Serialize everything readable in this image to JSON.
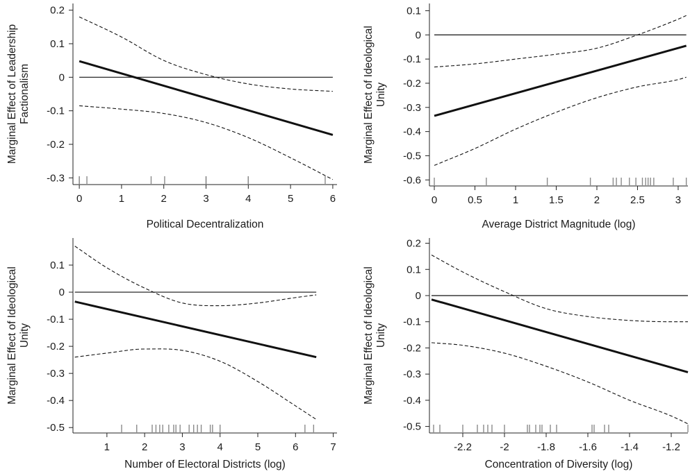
{
  "chart_data": [
    {
      "type": "line",
      "xlabel": "Political Decentralization",
      "ylabel": [
        "Marginal Effect of Leadership",
        "Factionalism"
      ],
      "xlim": [
        -0.15,
        6.1
      ],
      "ylim": [
        -0.32,
        0.22
      ],
      "xticks": [
        0,
        1,
        2,
        3,
        4,
        5,
        6
      ],
      "xtick_labels": [
        "0",
        "1",
        "2",
        "3",
        "4",
        "5",
        "6"
      ],
      "yticks": [
        0.2,
        0.1,
        0,
        -0.1,
        -0.2,
        -0.3
      ],
      "ytick_labels": [
        "0.2",
        "0.1",
        "0",
        "-0.1",
        "-0.2",
        "-0.3"
      ],
      "reference_line": 0,
      "estimate": {
        "x": [
          0,
          6
        ],
        "y": [
          0.048,
          -0.172
        ]
      },
      "ci_upper": {
        "x": [
          0,
          1,
          2,
          3,
          4,
          5,
          6
        ],
        "y": [
          0.18,
          0.12,
          0.05,
          0.008,
          -0.02,
          -0.035,
          -0.042
        ]
      },
      "ci_lower": {
        "x": [
          0,
          1,
          2,
          3,
          4,
          5,
          6
        ],
        "y": [
          -0.085,
          -0.095,
          -0.108,
          -0.135,
          -0.18,
          -0.24,
          -0.305
        ]
      },
      "rug": [
        0,
        0,
        0.18,
        1.7,
        2.02,
        3,
        3,
        4,
        4,
        4,
        5.82
      ]
    },
    {
      "type": "line",
      "xlabel": "Average District Magnitude (log)",
      "ylabel": [
        "Marginal Effect of Ideological",
        "Unity"
      ],
      "xlim": [
        -0.06,
        3.12
      ],
      "ylim": [
        -0.625,
        0.13
      ],
      "xticks": [
        0,
        0.5,
        1,
        1.5,
        2,
        2.5,
        3
      ],
      "xtick_labels": [
        "0",
        "0.5",
        "1",
        "1.5",
        "2",
        "2.5",
        "3"
      ],
      "yticks": [
        0.1,
        0,
        -0.1,
        -0.2,
        -0.3,
        -0.4,
        -0.5,
        -0.6
      ],
      "ytick_labels": [
        "0.1",
        "0",
        "-0.1",
        "-0.2",
        "-0.3",
        "-0.4",
        "-0.5",
        "-0.6"
      ],
      "reference_line": 0,
      "estimate": {
        "x": [
          0,
          3.1
        ],
        "y": [
          -0.335,
          -0.045
        ]
      },
      "ci_upper": {
        "x": [
          0,
          0.5,
          1,
          1.5,
          2,
          2.5,
          3,
          3.1
        ],
        "y": [
          -0.133,
          -0.12,
          -0.1,
          -0.08,
          -0.055,
          0,
          0.065,
          0.08
        ]
      },
      "ci_lower": {
        "x": [
          0,
          0.5,
          1,
          1.5,
          2,
          2.5,
          3,
          3.1
        ],
        "y": [
          -0.54,
          -0.47,
          -0.39,
          -0.32,
          -0.26,
          -0.215,
          -0.185,
          -0.175
        ]
      },
      "rug": [
        0,
        0.64,
        1.39,
        1.92,
        2.2,
        2.24,
        2.3,
        2.4,
        2.48,
        2.56,
        2.6,
        2.63,
        2.66,
        2.7,
        2.94,
        3.1
      ]
    },
    {
      "type": "line",
      "xlabel": "Number of Electoral Districts (log)",
      "ylabel": [
        "Marginal Effect of Ideological",
        "Unity"
      ],
      "xlim": [
        0.1,
        7.1
      ],
      "ylim": [
        -0.52,
        0.2
      ],
      "xticks": [
        1,
        2,
        3,
        4,
        5,
        6,
        7
      ],
      "xtick_labels": [
        "1",
        "2",
        "3",
        "4",
        "5",
        "6",
        "7"
      ],
      "yticks": [
        0.1,
        0,
        -0.1,
        -0.2,
        -0.3,
        -0.4,
        -0.5
      ],
      "ytick_labels": [
        "0.1",
        "0",
        "-0.1",
        "-0.2",
        "-0.3",
        "-0.4",
        "-0.5"
      ],
      "reference_line": 0,
      "estimate": {
        "x": [
          0.15,
          6.55
        ],
        "y": [
          -0.035,
          -0.24
        ]
      },
      "ci_upper": {
        "x": [
          0.15,
          1,
          2,
          3,
          4,
          5,
          6,
          6.55
        ],
        "y": [
          0.17,
          0.09,
          0.015,
          -0.04,
          -0.05,
          -0.04,
          -0.02,
          -0.01
        ]
      },
      "ci_lower": {
        "x": [
          0.15,
          1,
          2,
          3,
          4,
          5,
          6,
          6.55
        ],
        "y": [
          -0.24,
          -0.225,
          -0.21,
          -0.215,
          -0.255,
          -0.33,
          -0.42,
          -0.47
        ]
      },
      "rug": [
        1.39,
        1.79,
        2.2,
        2.3,
        2.4,
        2.48,
        2.64,
        2.77,
        2.83,
        2.94,
        3.18,
        3.3,
        3.4,
        3.5,
        3.74,
        3.8,
        4.0,
        6.25,
        6.48
      ]
    },
    {
      "type": "line",
      "xlabel": "Concentration of Diversity (log)",
      "ylabel": [
        "Marginal Effect of Ideological",
        "Unity"
      ],
      "xlim": [
        -2.36,
        -1.12
      ],
      "ylim": [
        -0.525,
        0.22
      ],
      "xticks": [
        -2.2,
        -2,
        -1.8,
        -1.6,
        -1.4,
        -1.2
      ],
      "xtick_labels": [
        "-2.2",
        "-2",
        "-1.8",
        "-1.6",
        "-1.4",
        "-1.2"
      ],
      "yticks": [
        0.2,
        0.1,
        0,
        -0.1,
        -0.2,
        -0.3,
        -0.4,
        -0.5
      ],
      "ytick_labels": [
        "0.2",
        "0.1",
        "0",
        "-0.1",
        "-0.2",
        "-0.3",
        "-0.4",
        "-0.5"
      ],
      "reference_line": 0,
      "estimate": {
        "x": [
          -2.35,
          -1.12
        ],
        "y": [
          -0.015,
          -0.293
        ]
      },
      "ci_upper": {
        "x": [
          -2.35,
          -2.2,
          -2,
          -1.8,
          -1.6,
          -1.4,
          -1.2,
          -1.12
        ],
        "y": [
          0.155,
          0.09,
          0.015,
          -0.05,
          -0.08,
          -0.095,
          -0.1,
          -0.1
        ]
      },
      "ci_lower": {
        "x": [
          -2.35,
          -2.2,
          -2,
          -1.8,
          -1.6,
          -1.4,
          -1.2,
          -1.12
        ],
        "y": [
          -0.18,
          -0.19,
          -0.22,
          -0.27,
          -0.33,
          -0.4,
          -0.46,
          -0.49
        ]
      },
      "rug": [
        -2.34,
        -2.31,
        -2.2,
        -2.13,
        -2.1,
        -2.08,
        -2.06,
        -2.0,
        -1.89,
        -1.88,
        -1.85,
        -1.83,
        -1.82,
        -1.78,
        -1.75,
        -1.58,
        -1.57,
        -1.52,
        -1.5,
        -1.12
      ]
    }
  ]
}
